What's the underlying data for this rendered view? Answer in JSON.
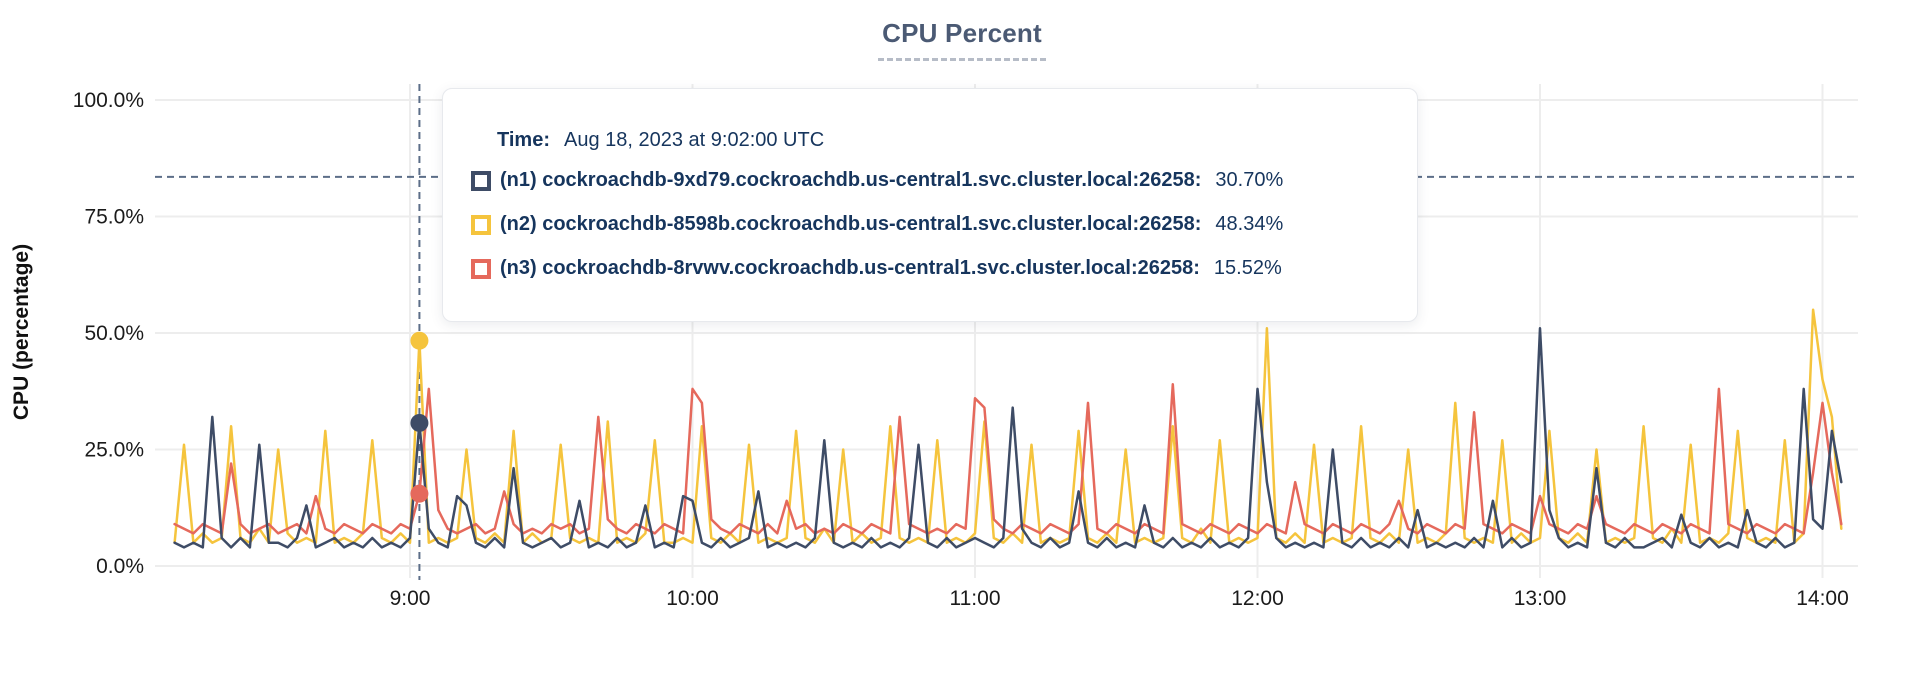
{
  "page": {
    "title": "CPU Percent"
  },
  "chart_data": {
    "type": "line",
    "title": "CPU Percent",
    "xlabel": "",
    "ylabel": "CPU (percentage)",
    "ylim": [
      0,
      103
    ],
    "grid": true,
    "legend_position": "tooltip-overlay",
    "y_ticks": [
      {
        "label": "0.0%",
        "value": 0
      },
      {
        "label": "25.0%",
        "value": 25
      },
      {
        "label": "50.0%",
        "value": 50
      },
      {
        "label": "75.0%",
        "value": 75
      },
      {
        "label": "100.0%",
        "value": 100
      }
    ],
    "x_ticks": [
      {
        "label": "9:00",
        "minute": 540
      },
      {
        "label": "10:00",
        "minute": 600
      },
      {
        "label": "11:00",
        "minute": 660
      },
      {
        "label": "12:00",
        "minute": 720
      },
      {
        "label": "13:00",
        "minute": 780
      },
      {
        "label": "14:00",
        "minute": 840
      }
    ],
    "x_start_minute": 490,
    "x_start_label": "8:10",
    "x_end_label": "14:04",
    "x_step_minutes": 2,
    "series": [
      {
        "id": "n1",
        "name": "(n1) cockroachdb-9xd79.cockroachdb.us-central1.svc.cluster.local:26258:",
        "color": "#3e4c66",
        "values": [
          5,
          4,
          5,
          4,
          32,
          6,
          4,
          6,
          4,
          26,
          5,
          5,
          4,
          6,
          13,
          4,
          5,
          6,
          4,
          5,
          4,
          6,
          4,
          5,
          4,
          6,
          30.7,
          8,
          5,
          4,
          15,
          13,
          5,
          4,
          6,
          4,
          21,
          5,
          4,
          5,
          6,
          4,
          5,
          14,
          4,
          5,
          4,
          6,
          4,
          5,
          13,
          4,
          5,
          4,
          15,
          14,
          5,
          4,
          6,
          4,
          5,
          6,
          16,
          4,
          5,
          4,
          5,
          4,
          6,
          27,
          5,
          4,
          5,
          4,
          6,
          4,
          5,
          4,
          6,
          26,
          5,
          4,
          6,
          4,
          5,
          6,
          5,
          4,
          6,
          34,
          8,
          5,
          4,
          6,
          4,
          5,
          16,
          5,
          4,
          6,
          4,
          5,
          4,
          13,
          5,
          4,
          6,
          4,
          5,
          4,
          6,
          4,
          5,
          4,
          6,
          38,
          18,
          6,
          4,
          5,
          4,
          5,
          4,
          25,
          5,
          4,
          6,
          4,
          5,
          4,
          6,
          4,
          12,
          4,
          5,
          4,
          5,
          4,
          6,
          4,
          14,
          4,
          6,
          4,
          5,
          51,
          12,
          6,
          4,
          5,
          4,
          21,
          5,
          4,
          6,
          4,
          4,
          5,
          6,
          4,
          11,
          5,
          4,
          6,
          4,
          5,
          4,
          12,
          5,
          4,
          6,
          4,
          5,
          38,
          10,
          8,
          29,
          18
        ]
      },
      {
        "id": "n2",
        "name": "(n2) cockroachdb-8598b.cockroachdb.us-central1.svc.cluster.local:26258:",
        "color": "#f5c43d",
        "values": [
          5,
          26,
          5,
          7,
          5,
          6,
          30,
          6,
          5,
          8,
          5,
          25,
          7,
          5,
          6,
          5,
          29,
          5,
          6,
          5,
          7,
          27,
          6,
          5,
          7,
          5,
          48.34,
          5,
          6,
          5,
          6,
          25,
          6,
          5,
          7,
          5,
          29,
          5,
          7,
          5,
          6,
          26,
          6,
          5,
          6,
          5,
          31,
          5,
          6,
          5,
          7,
          27,
          5,
          5,
          6,
          5,
          30,
          6,
          5,
          7,
          5,
          26,
          5,
          6,
          5,
          6,
          29,
          6,
          5,
          8,
          5,
          25,
          5,
          7,
          5,
          6,
          30,
          6,
          5,
          6,
          5,
          27,
          5,
          6,
          5,
          7,
          31,
          6,
          5,
          7,
          5,
          26,
          5,
          6,
          5,
          6,
          29,
          6,
          5,
          7,
          5,
          25,
          5,
          6,
          5,
          6,
          30,
          6,
          5,
          8,
          5,
          27,
          5,
          6,
          5,
          6,
          51,
          6,
          5,
          7,
          5,
          26,
          5,
          6,
          5,
          6,
          30,
          6,
          5,
          7,
          5,
          25,
          5,
          6,
          5,
          7,
          35,
          6,
          5,
          6,
          5,
          27,
          5,
          7,
          5,
          6,
          29,
          6,
          5,
          7,
          5,
          25,
          5,
          6,
          5,
          6,
          30,
          6,
          5,
          8,
          5,
          26,
          5,
          6,
          5,
          7,
          29,
          6,
          5,
          6,
          5,
          27,
          5,
          7,
          55,
          40,
          32,
          8
        ]
      },
      {
        "id": "n3",
        "name": "(n3) cockroachdb-8rvwv.cockroachdb.us-central1.svc.cluster.local:26258:",
        "color": "#e5695c",
        "values": [
          9,
          8,
          7,
          9,
          8,
          7,
          22,
          9,
          7,
          8,
          9,
          7,
          8,
          9,
          7,
          15,
          8,
          7,
          9,
          8,
          7,
          9,
          8,
          7,
          9,
          8,
          15.52,
          38,
          12,
          8,
          7,
          8,
          9,
          7,
          8,
          16,
          9,
          7,
          8,
          7,
          9,
          8,
          9,
          7,
          8,
          32,
          10,
          8,
          7,
          9,
          8,
          7,
          9,
          8,
          7,
          38,
          35,
          10,
          8,
          7,
          9,
          8,
          7,
          9,
          7,
          14,
          8,
          9,
          7,
          8,
          7,
          9,
          8,
          7,
          9,
          8,
          7,
          32,
          9,
          8,
          7,
          8,
          7,
          9,
          8,
          36,
          34,
          10,
          8,
          7,
          9,
          8,
          7,
          9,
          8,
          7,
          9,
          35,
          8,
          7,
          9,
          8,
          7,
          9,
          8,
          7,
          39,
          9,
          8,
          7,
          9,
          8,
          7,
          9,
          8,
          7,
          9,
          8,
          7,
          18,
          9,
          8,
          7,
          9,
          8,
          7,
          9,
          8,
          7,
          9,
          14,
          8,
          7,
          9,
          8,
          7,
          9,
          8,
          33,
          9,
          8,
          7,
          9,
          8,
          7,
          15,
          9,
          8,
          7,
          9,
          8,
          15,
          9,
          8,
          7,
          9,
          8,
          7,
          9,
          8,
          7,
          9,
          8,
          7,
          38,
          9,
          8,
          7,
          9,
          8,
          7,
          9,
          8,
          7,
          20,
          35,
          20,
          9
        ]
      }
    ],
    "hover": {
      "minute": 542,
      "time_label": "Aug 18, 2023 at 9:02:00 UTC",
      "crosshair_y_percent": 83.5,
      "points": [
        {
          "series": "n1",
          "percent": 30.7
        },
        {
          "series": "n2",
          "percent": 48.34
        },
        {
          "series": "n3",
          "percent": 15.52
        }
      ]
    }
  },
  "tooltip": {
    "time_label": "Time:",
    "time_value": "Aug 18, 2023 at 9:02:00 UTC",
    "rows": [
      {
        "label": "(n1) cockroachdb-9xd79.cockroachdb.us-central1.svc.cluster.local:26258:",
        "value": "30.70%"
      },
      {
        "label": "(n2) cockroachdb-8598b.cockroachdb.us-central1.svc.cluster.local:26258:",
        "value": "48.34%"
      },
      {
        "label": "(n3) cockroachdb-8rvwv.cockroachdb.us-central1.svc.cluster.local:26258:",
        "value": "15.52%"
      }
    ]
  },
  "colors": {
    "title": "#4b5a74",
    "axis_text": "#1b1b1b",
    "gridline": "#ededed",
    "crosshair": "#5c6e88",
    "tooltip_text": "#16355d"
  }
}
